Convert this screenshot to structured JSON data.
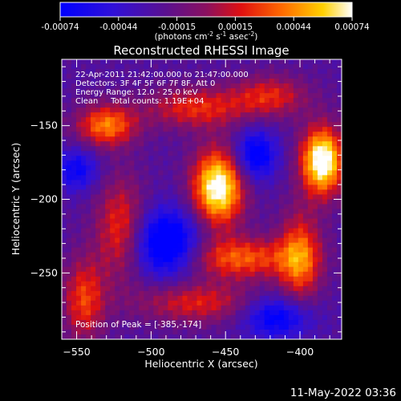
{
  "chart_data": {
    "type": "heatmap",
    "title": "Reconstructed RHESSI Image",
    "xlabel": "Heliocentric X (arcsec)",
    "ylabel": "Heliocentric Y (arcsec)",
    "xlim": [
      -560,
      -372
    ],
    "ylim": [
      -295,
      -105
    ],
    "xticks": [
      -550,
      -500,
      -450,
      -400
    ],
    "yticks": [
      -150,
      -200,
      -250
    ],
    "colorbar": {
      "ticks": [
        "-0.00074",
        "-0.00044",
        "-0.00015",
        "0.00015",
        "0.00044",
        "0.00074"
      ],
      "units_parts": [
        "(photons cm",
        "-2",
        " s",
        "-1",
        " asec",
        "-2",
        ")"
      ],
      "stops": [
        {
          "t": 0.0,
          "color": "#0000ff"
        },
        {
          "t": 0.18,
          "color": "#3010d8"
        },
        {
          "t": 0.36,
          "color": "#5a1090"
        },
        {
          "t": 0.5,
          "color": "#8a1060"
        },
        {
          "t": 0.62,
          "color": "#e01010"
        },
        {
          "t": 0.76,
          "color": "#ff6a00"
        },
        {
          "t": 0.9,
          "color": "#ffd000"
        },
        {
          "t": 1.0,
          "color": "#ffffff"
        }
      ]
    },
    "annotations": [
      "22-Apr-2011 21:42:00.000 to 21:47:00.000",
      "Detectors: 3F 4F 5F 6F 7F 8F, Att 0",
      "Energy Range: 12.0 - 25.0 keV",
      "Clean     Total counts: 1.19E+04"
    ],
    "peak_label": "Position of Peak = [-385,-174]",
    "peak": [
      -385,
      -174
    ],
    "features": [
      {
        "x": -455,
        "y": -192,
        "amp": 0.72,
        "sx": 12,
        "sy": 18
      },
      {
        "x": -385,
        "y": -174,
        "amp": 0.75,
        "sx": 10,
        "sy": 16
      },
      {
        "x": -530,
        "y": -150,
        "amp": 0.45,
        "sx": 14,
        "sy": 10
      },
      {
        "x": -520,
        "y": -220,
        "amp": 0.35,
        "sx": 12,
        "sy": 24
      },
      {
        "x": -440,
        "y": -240,
        "amp": 0.4,
        "sx": 26,
        "sy": 10
      },
      {
        "x": -400,
        "y": -240,
        "amp": 0.42,
        "sx": 10,
        "sy": 22
      },
      {
        "x": -470,
        "y": -270,
        "amp": 0.3,
        "sx": 28,
        "sy": 10
      },
      {
        "x": -545,
        "y": -268,
        "amp": 0.35,
        "sx": 10,
        "sy": 20
      },
      {
        "x": -470,
        "y": -138,
        "amp": 0.32,
        "sx": 24,
        "sy": 10
      },
      {
        "x": -420,
        "y": -130,
        "amp": 0.3,
        "sx": 18,
        "sy": 10
      },
      {
        "x": -490,
        "y": -230,
        "amp": -0.5,
        "sx": 16,
        "sy": 16
      },
      {
        "x": -430,
        "y": -170,
        "amp": -0.4,
        "sx": 10,
        "sy": 12
      },
      {
        "x": -415,
        "y": -280,
        "amp": -0.38,
        "sx": 16,
        "sy": 10
      },
      {
        "x": -550,
        "y": -180,
        "amp": -0.3,
        "sx": 10,
        "sy": 10
      }
    ]
  },
  "footer": {
    "timestamp": "11-May-2022 03:36"
  }
}
